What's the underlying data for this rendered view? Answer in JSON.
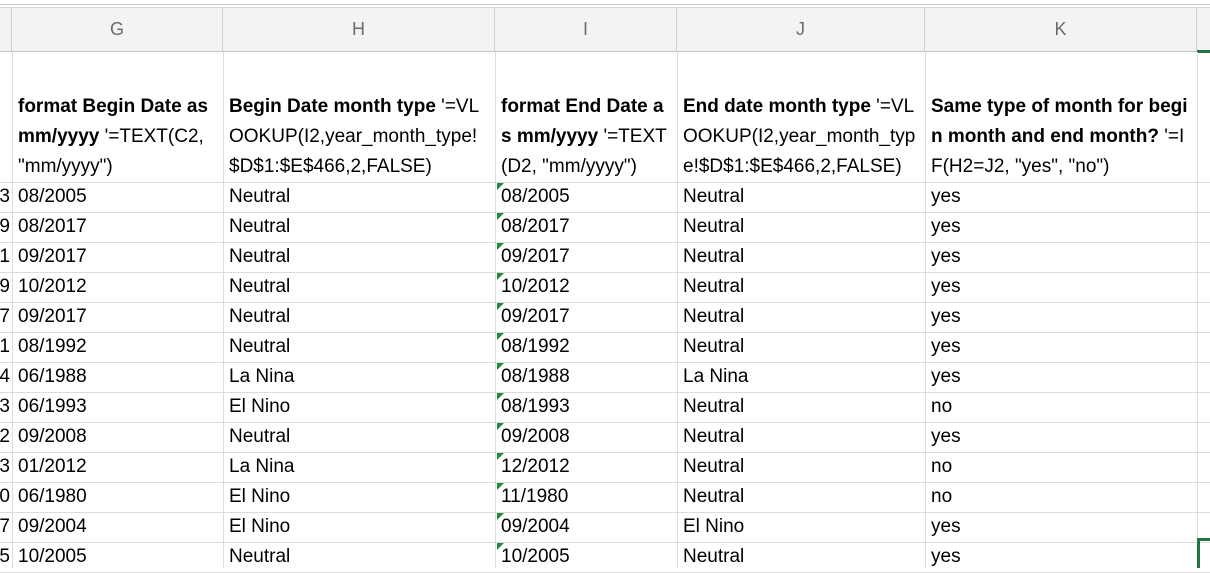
{
  "columns": [
    "G",
    "H",
    "I",
    "J",
    "K"
  ],
  "header_row": {
    "G": {
      "bold": "format Begin Date as mm/yyyy",
      "formula": " '=TEXT(C2, \"mm/yyyy\")"
    },
    "H": {
      "bold": "Begin Date month type",
      "formula": " '=VLOOKUP(I2,year_month_type!$D$1:$E$466,2,FALSE)"
    },
    "I": {
      "bold": "format End Date as mm/yyyy",
      "formula": " '=TEXT(D2, \"mm/yyyy\")"
    },
    "J": {
      "bold": "End date month type",
      "formula": " '=VLOOKUP(I2,year_month_type!$D$1:$E$466,2,FALSE)"
    },
    "K": {
      "bold": "Same type of month for begin month and end month?",
      "formula": " '=IF(H2=J2, \"yes\", \"no\")"
    }
  },
  "rows": [
    {
      "clip": "3",
      "g": "08/2005",
      "h": "Neutral",
      "i": "08/2005",
      "j": "Neutral",
      "k": "yes"
    },
    {
      "clip": "9",
      "g": "08/2017",
      "h": "Neutral",
      "i": "08/2017",
      "j": "Neutral",
      "k": "yes"
    },
    {
      "clip": "1",
      "g": "09/2017",
      "h": "Neutral",
      "i": "09/2017",
      "j": "Neutral",
      "k": "yes"
    },
    {
      "clip": "9",
      "g": "10/2012",
      "h": "Neutral",
      "i": "10/2012",
      "j": "Neutral",
      "k": "yes"
    },
    {
      "clip": "7",
      "g": "09/2017",
      "h": "Neutral",
      "i": "09/2017",
      "j": "Neutral",
      "k": "yes"
    },
    {
      "clip": "1",
      "g": "08/1992",
      "h": "Neutral",
      "i": "08/1992",
      "j": "Neutral",
      "k": "yes"
    },
    {
      "clip": "4",
      "g": "06/1988",
      "h": "La Nina",
      "i": "08/1988",
      "j": "La Nina",
      "k": "yes"
    },
    {
      "clip": "3",
      "g": "06/1993",
      "h": "El Nino",
      "i": "08/1993",
      "j": "Neutral",
      "k": "no"
    },
    {
      "clip": "2",
      "g": "09/2008",
      "h": "Neutral",
      "i": "09/2008",
      "j": "Neutral",
      "k": "yes"
    },
    {
      "clip": "3",
      "g": "01/2012",
      "h": "La Nina",
      "i": "12/2012",
      "j": "Neutral",
      "k": "no"
    },
    {
      "clip": "0",
      "g": "06/1980",
      "h": "El Nino",
      "i": "11/1980",
      "j": "Neutral",
      "k": "no"
    },
    {
      "clip": "7",
      "g": "09/2004",
      "h": "El Nino",
      "i": "09/2004",
      "j": "El Nino",
      "k": "yes"
    },
    {
      "clip": "5",
      "g": "10/2005",
      "h": "Neutral",
      "i": "10/2005",
      "j": "Neutral",
      "k": "yes"
    }
  ],
  "colors": {
    "selection": "#227447",
    "error_indicator": "#1f8a3c",
    "header_bg": "#f3f3f3",
    "gridline": "#dcdcdc"
  }
}
